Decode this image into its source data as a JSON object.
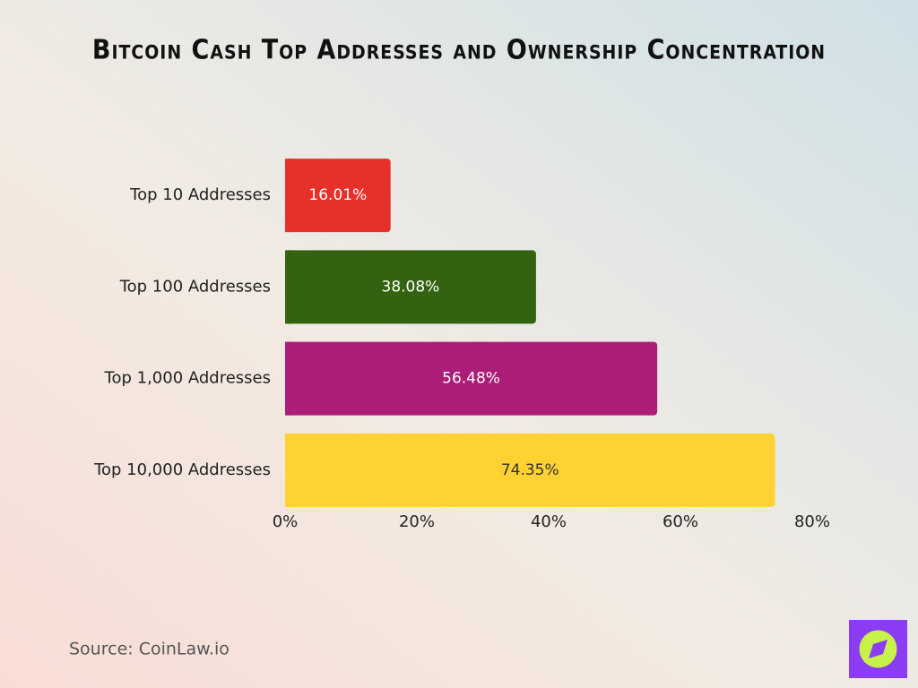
{
  "chart_data": {
    "type": "bar",
    "orientation": "horizontal",
    "title": "Bitcoin Cash Top Addresses and Ownership Concentration",
    "categories": [
      "Top 10 Addresses",
      "Top 100 Addresses",
      "Top 1,000 Addresses",
      "Top 10,000 Addresses"
    ],
    "values": [
      16.01,
      38.08,
      56.48,
      74.35
    ],
    "value_labels": [
      "16.01%",
      "38.08%",
      "56.48%",
      "74.35%"
    ],
    "colors": [
      "#e8302a",
      "#336311",
      "#ac1d78",
      "#fdd232"
    ],
    "xlim": [
      0,
      80
    ],
    "xticks": [
      {
        "value": 0,
        "label": "0%"
      },
      {
        "value": 20,
        "label": "20%"
      },
      {
        "value": 40,
        "label": "40%"
      },
      {
        "value": 60,
        "label": "60%"
      },
      {
        "value": 80,
        "label": "80%"
      }
    ],
    "grid": false,
    "source": "Source: CoinLaw.io"
  }
}
